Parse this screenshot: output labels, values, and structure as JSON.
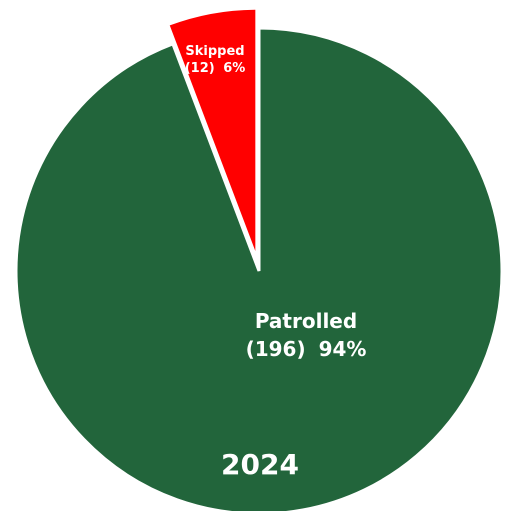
{
  "chart_data": {
    "type": "pie",
    "slices": [
      {
        "name": "Patrolled",
        "count": "(196)",
        "percent": "94%",
        "value": 196,
        "color": "#22653b"
      },
      {
        "name": "Skipped",
        "count": "(12)",
        "percent": "6%",
        "value": 12,
        "color": "#ff0000"
      }
    ],
    "annotation": "2024"
  }
}
